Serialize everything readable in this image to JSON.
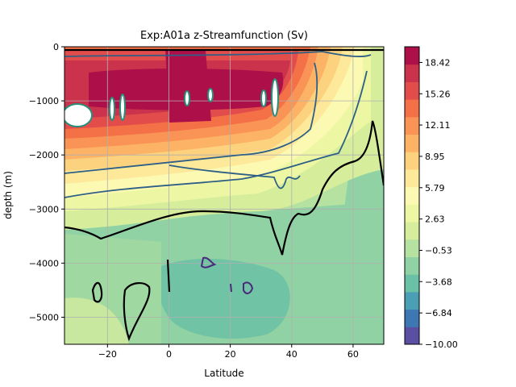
{
  "chart_data": {
    "type": "heatmap",
    "title": "Exp:A01a  z-Streamfunction (Sv)",
    "xlabel": "Latitude",
    "ylabel": "depth (m)",
    "xlim": [
      -34,
      70
    ],
    "ylim": [
      -5500,
      0
    ],
    "xticks": [
      -20,
      0,
      20,
      40,
      60
    ],
    "xtick_labels": [
      "−20",
      "0",
      "20",
      "40",
      "60"
    ],
    "yticks": [
      0,
      -1000,
      -2000,
      -3000,
      -4000,
      -5000
    ],
    "ytick_labels": [
      "0",
      "−1000",
      "−2000",
      "−3000",
      "−4000",
      "−5000"
    ],
    "grid": true,
    "colormap": "Spectral_r",
    "colorbar": {
      "min": -10.0,
      "max": 20.0,
      "tick_values": [
        -10.0,
        -6.84,
        -3.68,
        -0.53,
        2.63,
        5.79,
        8.95,
        12.11,
        15.26,
        18.42
      ],
      "tick_labels": [
        "−10.00",
        "−6.84",
        "−3.68",
        "−0.53",
        "2.63",
        "5.79",
        "8.95",
        "12.11",
        "15.26",
        "18.42"
      ],
      "band_colors": [
        "#5a4fa2",
        "#3d78b5",
        "#4a9fb5",
        "#6bc1a6",
        "#90d2a4",
        "#b6e2a1",
        "#d6ee9b",
        "#edf7a3",
        "#fbf9b2",
        "#fee99a",
        "#fdd27f",
        "#fdb366",
        "#f99456",
        "#f47046",
        "#e24d4b",
        "#cb334c",
        "#ad1049"
      ]
    },
    "contours": [
      {
        "level": 0,
        "color": "#000000",
        "style": "thick"
      },
      {
        "level": 5,
        "color": "#2e5f86",
        "style": "medium"
      },
      {
        "level": 20,
        "color": "#2a8f7a",
        "style": "closed-cells"
      },
      {
        "level": -5,
        "color": "#4a2a7a",
        "style": "closed-cells"
      }
    ]
  }
}
